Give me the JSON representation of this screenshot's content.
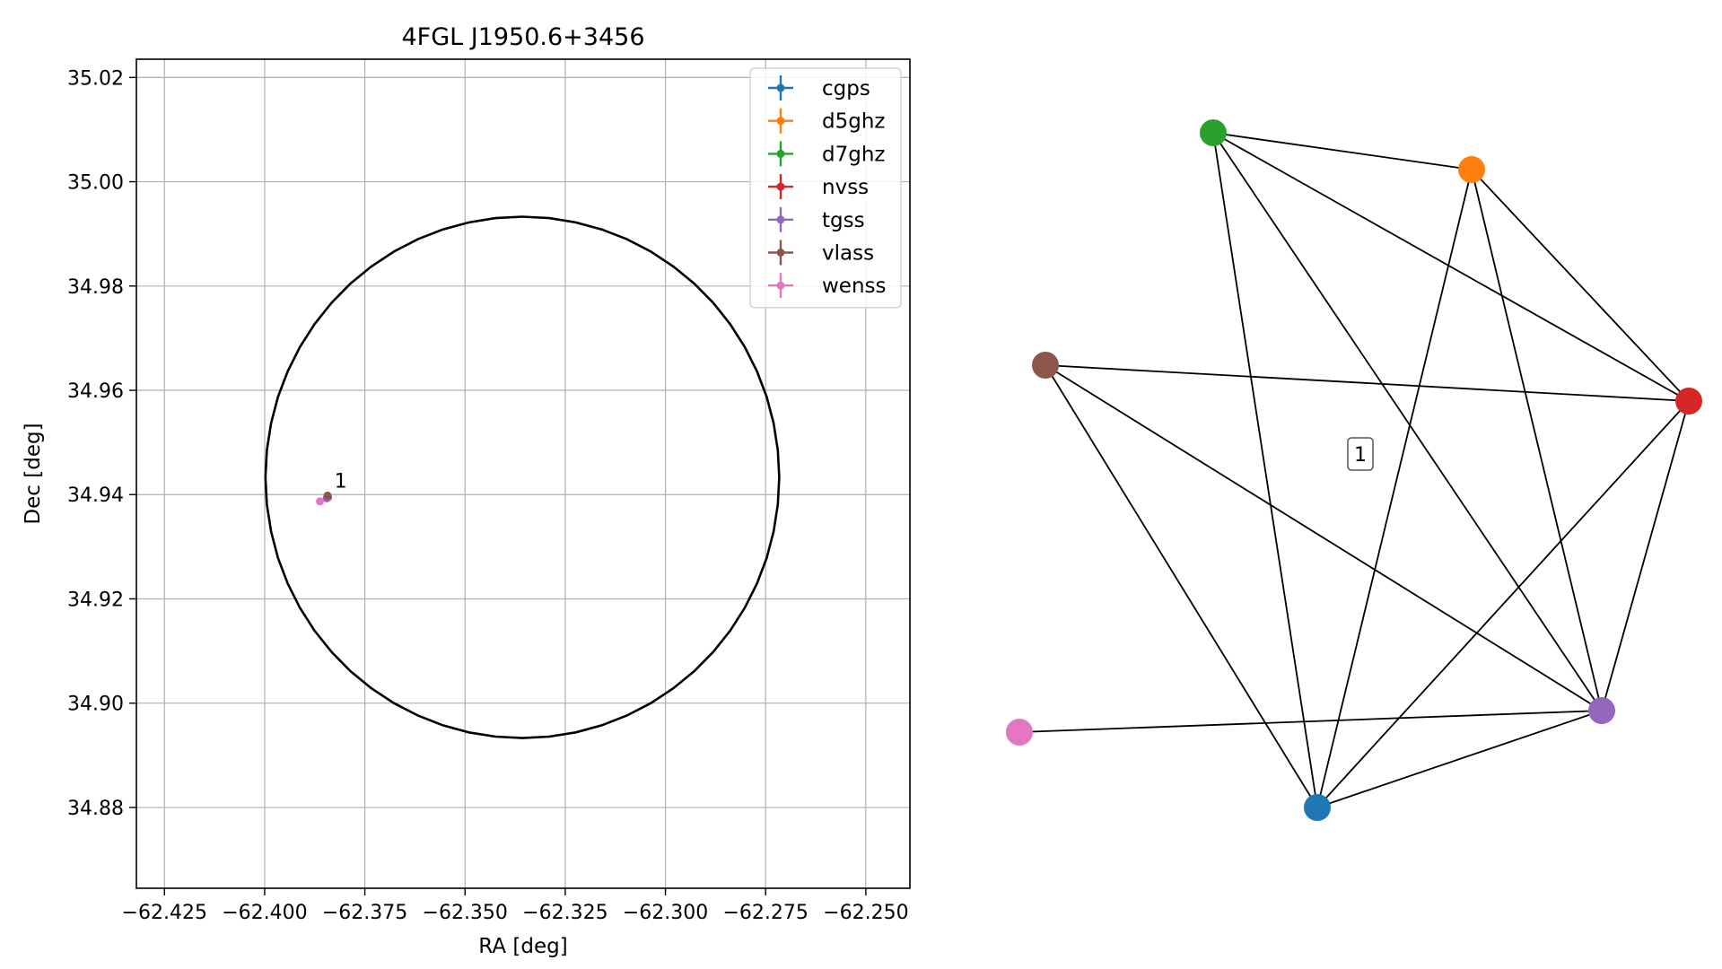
{
  "chart_data": [
    {
      "type": "scatter",
      "title": "4FGL J1950.6+3456",
      "xlabel": "RA [deg]",
      "ylabel": "Dec [deg]",
      "xlim": [
        -62.432,
        -62.239
      ],
      "ylim": [
        34.8645,
        35.0235
      ],
      "xticks": [
        -62.425,
        -62.4,
        -62.375,
        -62.35,
        -62.325,
        -62.3,
        -62.275,
        -62.25
      ],
      "xtick_labels": [
        "−62.425",
        "−62.400",
        "−62.375",
        "−62.350",
        "−62.325",
        "−62.300",
        "−62.275",
        "−62.250"
      ],
      "yticks": [
        34.88,
        34.9,
        34.92,
        34.94,
        34.96,
        34.98,
        35.0,
        35.02
      ],
      "ytick_labels": [
        "34.88",
        "34.90",
        "34.92",
        "34.94",
        "34.96",
        "34.98",
        "35.00",
        "35.02"
      ],
      "grid": true,
      "legend_position": "top-right",
      "ellipse": {
        "center_ra": -62.3357,
        "center_dec": 34.9433,
        "semi_axis_ra": 0.0641,
        "semi_axis_dec": 0.05,
        "color": "#000000"
      },
      "series": [
        {
          "name": "cgps",
          "color": "#1f77b4",
          "points": [
            [
              -62.3843,
              34.9394
            ]
          ]
        },
        {
          "name": "d5ghz",
          "color": "#ff7f0e",
          "points": [
            [
              -62.3843,
              34.9396
            ]
          ]
        },
        {
          "name": "d7ghz",
          "color": "#2ca02c",
          "points": [
            [
              -62.3843,
              34.9395
            ]
          ]
        },
        {
          "name": "nvss",
          "color": "#d62728",
          "points": [
            [
              -62.3842,
              34.9395
            ]
          ]
        },
        {
          "name": "tgss",
          "color": "#9467bd",
          "points": [
            [
              -62.3845,
              34.9393
            ]
          ]
        },
        {
          "name": "vlass",
          "color": "#8c564b",
          "points": [
            [
              -62.3843,
              34.9398
            ]
          ]
        },
        {
          "name": "wenss",
          "color": "#e377c2",
          "points": [
            [
              -62.3862,
              34.9387
            ]
          ]
        }
      ],
      "annotations": [
        {
          "text": "1",
          "x": -62.3835,
          "y": 34.941
        }
      ]
    },
    {
      "type": "network",
      "nodes": [
        {
          "id": "cgps",
          "color": "#1f77b4"
        },
        {
          "id": "d5ghz",
          "color": "#ff7f0e"
        },
        {
          "id": "d7ghz",
          "color": "#2ca02c"
        },
        {
          "id": "nvss",
          "color": "#d62728"
        },
        {
          "id": "tgss",
          "color": "#9467bd"
        },
        {
          "id": "vlass",
          "color": "#8c564b"
        },
        {
          "id": "wenss",
          "color": "#e377c2"
        }
      ],
      "edges": [
        [
          "d7ghz",
          "d5ghz"
        ],
        [
          "d7ghz",
          "nvss"
        ],
        [
          "d7ghz",
          "cgps"
        ],
        [
          "d7ghz",
          "tgss"
        ],
        [
          "d5ghz",
          "nvss"
        ],
        [
          "d5ghz",
          "cgps"
        ],
        [
          "d5ghz",
          "tgss"
        ],
        [
          "vlass",
          "nvss"
        ],
        [
          "vlass",
          "cgps"
        ],
        [
          "vlass",
          "tgss"
        ],
        [
          "nvss",
          "cgps"
        ],
        [
          "nvss",
          "tgss"
        ],
        [
          "wenss",
          "tgss"
        ],
        [
          "cgps",
          "tgss"
        ]
      ],
      "group_label": "1"
    }
  ]
}
